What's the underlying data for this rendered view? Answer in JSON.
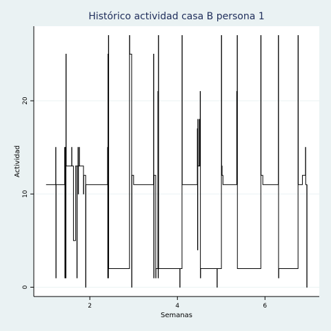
{
  "chart_data": {
    "type": "line",
    "title": "Histórico actividad casa B persona 1",
    "xlabel": "Semanas",
    "ylabel": "Actividad",
    "xlim": [
      0.72,
      7.24
    ],
    "ylim": [
      -1,
      28
    ],
    "x_ticks": [
      2,
      4,
      6
    ],
    "y_ticks": [
      0,
      10,
      20
    ],
    "grid": true,
    "series": [
      {
        "step": true,
        "points": [
          [
            1.0,
            11
          ],
          [
            1.2,
            11
          ],
          [
            1.22,
            15
          ],
          [
            1.225,
            1
          ],
          [
            1.23,
            11
          ],
          [
            1.42,
            11
          ],
          [
            1.425,
            15
          ],
          [
            1.43,
            1
          ],
          [
            1.435,
            13
          ],
          [
            1.44,
            1
          ],
          [
            1.445,
            15
          ],
          [
            1.45,
            1
          ],
          [
            1.455,
            25
          ],
          [
            1.46,
            13
          ],
          [
            1.58,
            13
          ],
          [
            1.585,
            15
          ],
          [
            1.59,
            13
          ],
          [
            1.62,
            13
          ],
          [
            1.625,
            5
          ],
          [
            1.67,
            5
          ],
          [
            1.675,
            13
          ],
          [
            1.7,
            13
          ],
          [
            1.705,
            1
          ],
          [
            1.71,
            13
          ],
          [
            1.73,
            15
          ],
          [
            1.735,
            10
          ],
          [
            1.74,
            13
          ],
          [
            1.76,
            15
          ],
          [
            1.765,
            13
          ],
          [
            1.85,
            13
          ],
          [
            1.855,
            10
          ],
          [
            1.86,
            12
          ],
          [
            1.9,
            12
          ],
          [
            1.905,
            0
          ],
          [
            1.91,
            11
          ],
          [
            2.4,
            11
          ],
          [
            2.405,
            15
          ],
          [
            2.41,
            1
          ],
          [
            2.415,
            25
          ],
          [
            2.42,
            1
          ],
          [
            2.425,
            27
          ],
          [
            2.43,
            2
          ],
          [
            2.9,
            2
          ],
          [
            2.905,
            27
          ],
          [
            2.91,
            25
          ],
          [
            2.95,
            25
          ],
          [
            2.955,
            0
          ],
          [
            2.96,
            12
          ],
          [
            3.0,
            11
          ],
          [
            3.45,
            11
          ],
          [
            3.455,
            25
          ],
          [
            3.46,
            1
          ],
          [
            3.465,
            12
          ],
          [
            3.5,
            12
          ],
          [
            3.505,
            1
          ],
          [
            3.51,
            2
          ],
          [
            3.55,
            2
          ],
          [
            3.555,
            21
          ],
          [
            3.56,
            1
          ],
          [
            3.565,
            27
          ],
          [
            3.57,
            2
          ],
          [
            4.05,
            2
          ],
          [
            4.055,
            0
          ],
          [
            4.06,
            2
          ],
          [
            4.1,
            2
          ],
          [
            4.105,
            27
          ],
          [
            4.11,
            11
          ],
          [
            4.45,
            11
          ],
          [
            4.455,
            17
          ],
          [
            4.46,
            4
          ],
          [
            4.465,
            18
          ],
          [
            4.47,
            13
          ],
          [
            4.5,
            18
          ],
          [
            4.505,
            13
          ],
          [
            4.52,
            21
          ],
          [
            4.525,
            1
          ],
          [
            4.53,
            2
          ],
          [
            4.9,
            2
          ],
          [
            4.905,
            0
          ],
          [
            4.91,
            2
          ],
          [
            5.0,
            2
          ],
          [
            5.005,
            27
          ],
          [
            5.01,
            13
          ],
          [
            5.02,
            12
          ],
          [
            5.04,
            11
          ],
          [
            5.35,
            11
          ],
          [
            5.355,
            21
          ],
          [
            5.36,
            18
          ],
          [
            5.365,
            27
          ],
          [
            5.37,
            2
          ],
          [
            5.9,
            2
          ],
          [
            5.905,
            27
          ],
          [
            5.91,
            12
          ],
          [
            5.95,
            11
          ],
          [
            6.3,
            11
          ],
          [
            6.305,
            27
          ],
          [
            6.31,
            1
          ],
          [
            6.315,
            2
          ],
          [
            6.75,
            2
          ],
          [
            6.755,
            27
          ],
          [
            6.76,
            11
          ],
          [
            6.85,
            11
          ],
          [
            6.855,
            12
          ],
          [
            6.92,
            12
          ],
          [
            6.925,
            15
          ],
          [
            6.93,
            11
          ],
          [
            6.95,
            11
          ],
          [
            6.955,
            0
          ],
          [
            6.96,
            11
          ]
        ]
      }
    ]
  }
}
